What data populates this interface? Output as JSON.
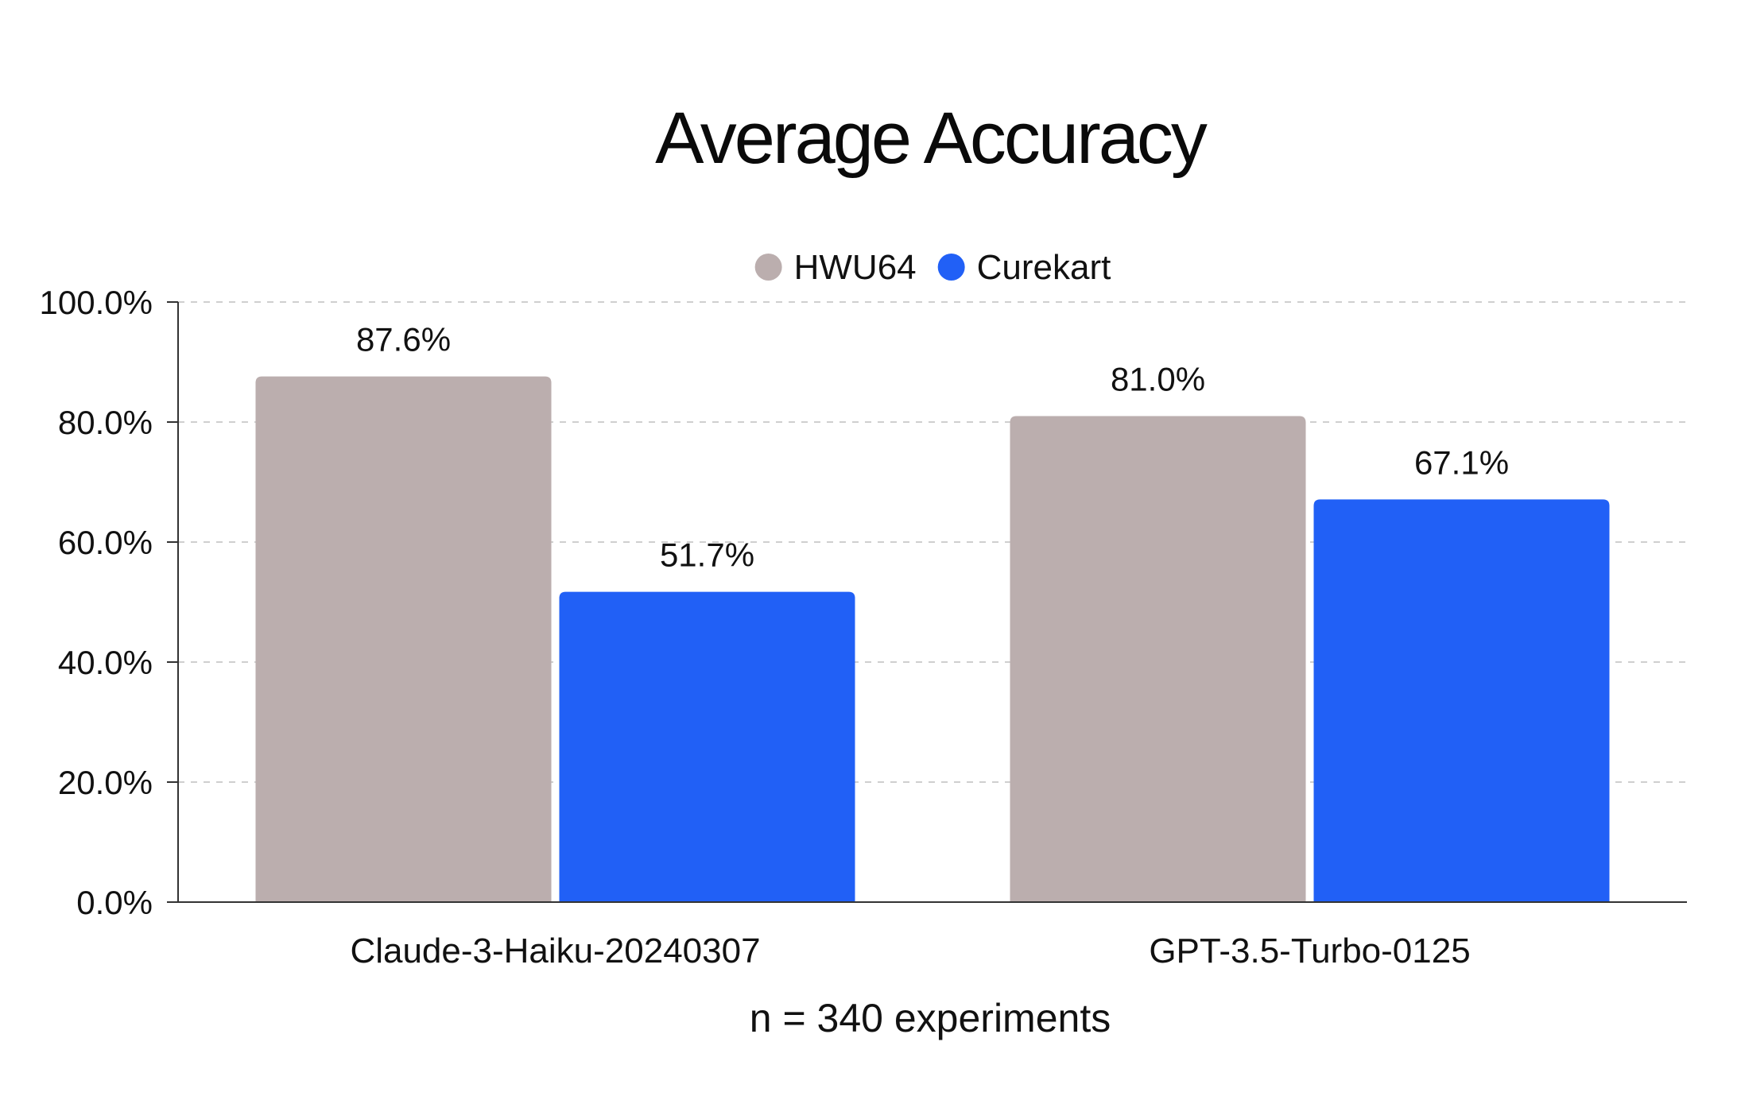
{
  "chart_data": {
    "type": "bar",
    "title": "Average Accuracy",
    "xlabel": "n = 340 experiments",
    "ylabel": "",
    "categories": [
      "Claude-3-Haiku-20240307",
      "GPT-3.5-Turbo-0125"
    ],
    "series": [
      {
        "name": "HWU64",
        "values": [
          87.6,
          81.0
        ],
        "color": "#bbaeae",
        "labels": [
          "87.6%",
          "81.0%"
        ]
      },
      {
        "name": "Curekart",
        "values": [
          51.7,
          67.1
        ],
        "color": "#2160f6",
        "labels": [
          "51.7%",
          "67.1%"
        ]
      }
    ],
    "ylim": [
      0,
      100
    ],
    "yticks": [
      0,
      20,
      40,
      60,
      80,
      100
    ],
    "ytick_labels": [
      "0.0%",
      "20.0%",
      "40.0%",
      "60.0%",
      "80.0%",
      "100.0%"
    ],
    "grid": true,
    "legend_position": "top-center"
  }
}
